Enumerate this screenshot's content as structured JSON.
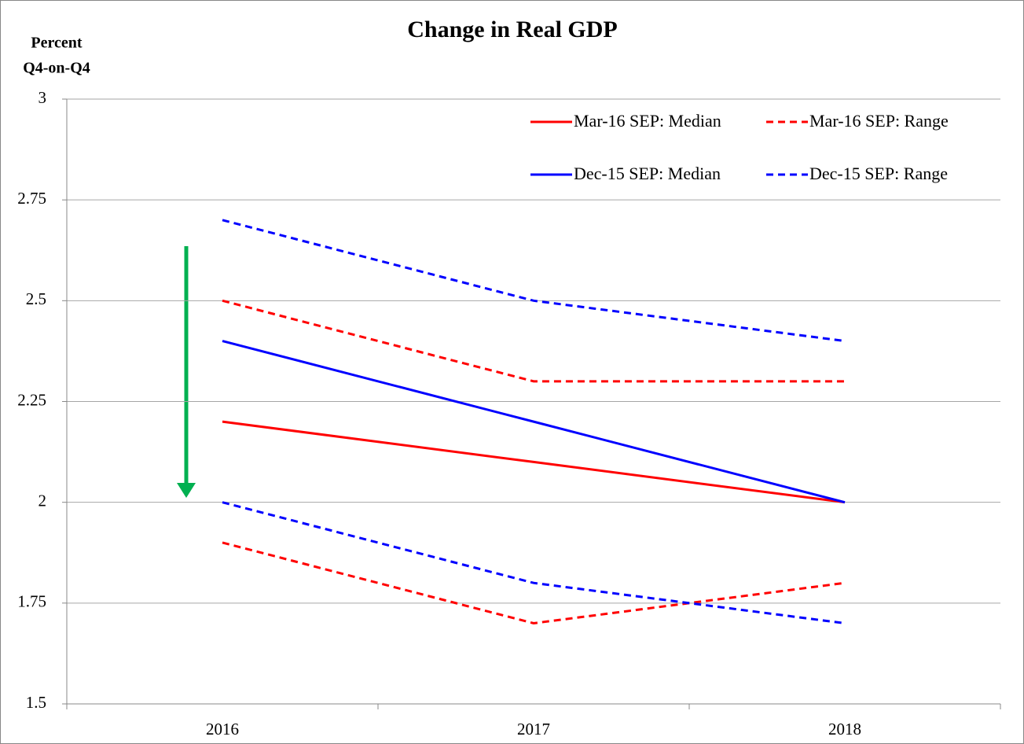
{
  "chart_data": {
    "type": "line",
    "title": "Change in Real GDP",
    "y_label": [
      "Percent",
      "Q4-on-Q4"
    ],
    "categories": [
      "2016",
      "2017",
      "2018"
    ],
    "series": [
      {
        "name": "Mar-16 SEP: Median",
        "color": "#ff0000",
        "style": "solid",
        "values": [
          2.2,
          2.1,
          2.0
        ]
      },
      {
        "name": "Mar-16 SEP: Range",
        "color": "#ff0000",
        "style": "dashed",
        "high": [
          2.5,
          2.3,
          2.3
        ],
        "low": [
          1.9,
          1.7,
          1.8
        ]
      },
      {
        "name": "Dec-15 SEP: Median",
        "color": "#0000ff",
        "style": "solid",
        "values": [
          2.4,
          2.2,
          2.0
        ]
      },
      {
        "name": "Dec-15 SEP: Range",
        "color": "#0000ff",
        "style": "dashed",
        "high": [
          2.7,
          2.5,
          2.4
        ],
        "low": [
          2.0,
          1.8,
          1.7
        ]
      }
    ],
    "ylim": [
      1.5,
      3
    ],
    "yticks": [
      1.5,
      1.75,
      2,
      2.25,
      2.5,
      2.75,
      3
    ],
    "grid": true
  }
}
